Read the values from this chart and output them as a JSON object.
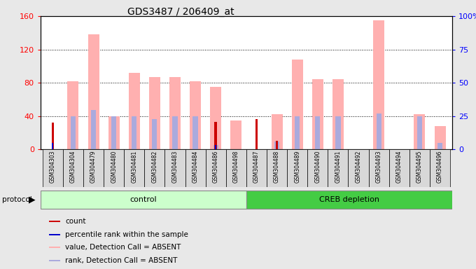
{
  "title": "GDS3487 / 206409_at",
  "samples": [
    "GSM304303",
    "GSM304304",
    "GSM304479",
    "GSM304480",
    "GSM304481",
    "GSM304482",
    "GSM304483",
    "GSM304484",
    "GSM304486",
    "GSM304498",
    "GSM304487",
    "GSM304488",
    "GSM304489",
    "GSM304490",
    "GSM304491",
    "GSM304492",
    "GSM304493",
    "GSM304494",
    "GSM304495",
    "GSM304496"
  ],
  "count_values": [
    32,
    0,
    0,
    0,
    0,
    0,
    0,
    0,
    33,
    0,
    36,
    10,
    0,
    0,
    0,
    0,
    0,
    0,
    0,
    0
  ],
  "rank_values": [
    8,
    0,
    0,
    0,
    0,
    0,
    0,
    0,
    5,
    0,
    0,
    0,
    0,
    0,
    0,
    0,
    0,
    0,
    0,
    0
  ],
  "absent_value_bars": [
    0,
    82,
    138,
    40,
    92,
    87,
    87,
    82,
    75,
    35,
    0,
    42,
    108,
    84,
    84,
    0,
    155,
    0,
    42,
    28
  ],
  "absent_rank_bars": [
    0,
    40,
    47,
    40,
    40,
    36,
    40,
    40,
    5,
    0,
    0,
    9,
    40,
    40,
    40,
    0,
    43,
    0,
    40,
    8
  ],
  "control_count": 10,
  "creb_count": 10,
  "ylim_left": [
    0,
    160
  ],
  "ylim_right": [
    0,
    100
  ],
  "yticks_left": [
    0,
    40,
    80,
    120,
    160
  ],
  "yticks_right": [
    0,
    25,
    50,
    75,
    100
  ],
  "yticklabels_right": [
    "0",
    "25",
    "50",
    "75",
    "100%"
  ],
  "bg_color": "#e8e8e8",
  "plot_bg": "#ffffff",
  "color_count": "#cc0000",
  "color_rank": "#0000cc",
  "color_absent_value": "#ffb0b0",
  "color_absent_rank": "#aaaadd",
  "color_control_light": "#ccffcc",
  "color_creb_green": "#44cc44",
  "bar_width": 0.55
}
